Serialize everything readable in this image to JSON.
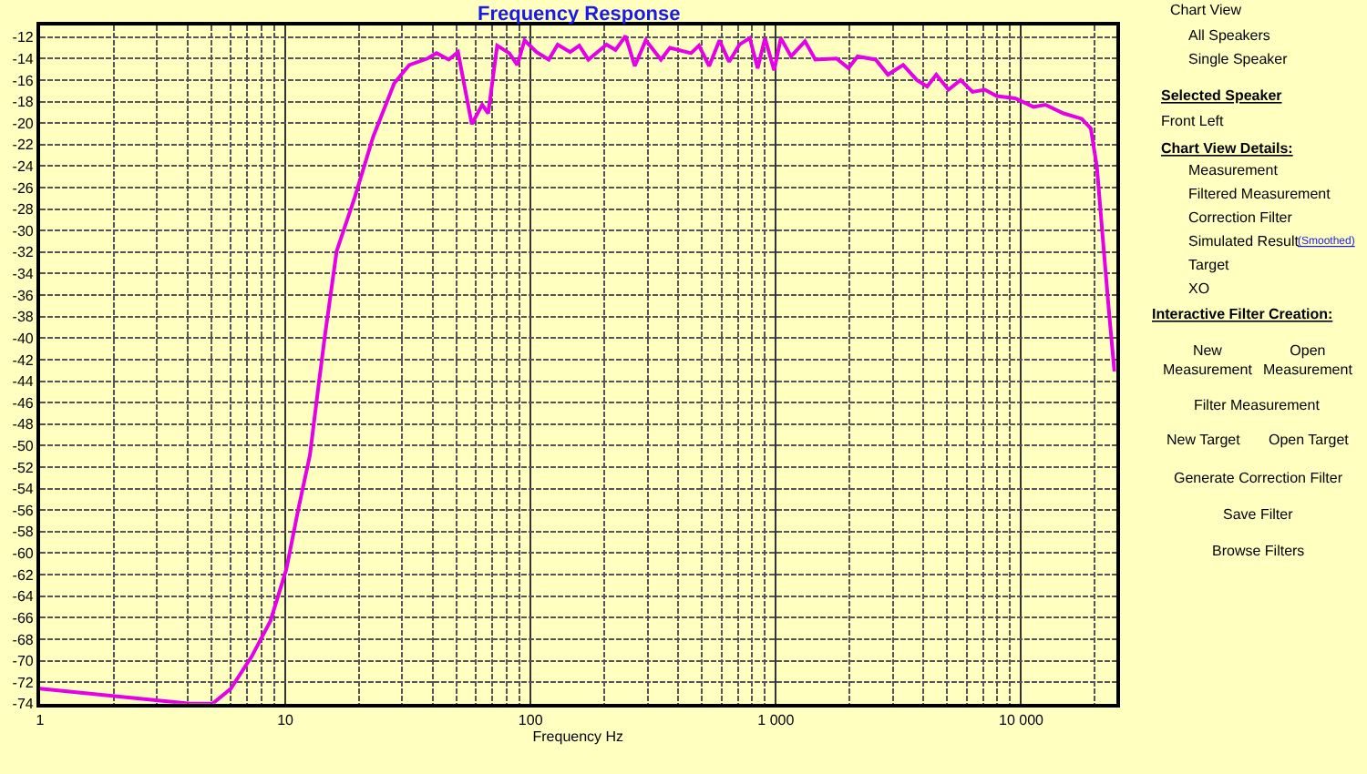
{
  "chart_data": [
    {
      "type": "line",
      "title": "Frequency Response",
      "xlabel": "Frequency Hz",
      "log": "x",
      "grid": true,
      "marker": "none",
      "line_style": "solid",
      "xlim": [
        1,
        24400
      ],
      "xticks": [
        1,
        10,
        100,
        {
          "value": 1000,
          "label": "1 000"
        },
        {
          "value": 10000,
          "label": "10 000"
        }
      ],
      "ylim": [
        -74,
        -10.9
      ],
      "yticks": [
        -12,
        -14,
        -16,
        -18,
        -20,
        -22,
        -24,
        -26,
        -28,
        -30,
        -32,
        -34,
        -36,
        -38,
        -40,
        -42,
        -44,
        -46,
        -48,
        -50,
        -52,
        -54,
        -56,
        -58,
        -60,
        -62,
        -64,
        -66,
        -68,
        -70,
        -72,
        -74
      ],
      "series": [
        {
          "color": "#e600e6",
          "x": [
            1,
            4.1,
            5.05,
            6.0,
            7.3,
            8.7,
            10.1,
            11.3,
            12.6,
            13.7,
            14.5,
            16.2,
            19.2,
            22.8,
            27.8,
            32,
            38,
            41.4,
            46.4,
            50.6,
            57.6,
            63.5,
            67.2,
            73.1,
            81.9,
            88.3,
            94.5,
            105.8,
            118.6,
            129,
            145,
            158,
            172,
            204,
            222,
            244,
            266,
            295,
            340,
            370,
            451,
            486,
            535,
            589,
            645,
            711,
            783,
            843,
            903,
            984,
            1048,
            1153,
            1315,
            1449,
            1767,
            1978,
            2154,
            2553,
            2865,
            3304,
            3759,
            4140,
            4509,
            5058,
            5664,
            6339,
            7112,
            7961,
            9459,
            11220,
            12560,
            14890,
            17660,
            19230,
            20370,
            21540,
            22800,
            24000
          ],
          "values": [
            -72.6,
            -74,
            -74,
            -72.6,
            -69.6,
            -66.3,
            -61.5,
            -55.9,
            -50.9,
            -44.2,
            -39.8,
            -31.9,
            -26.9,
            -21.3,
            -16.3,
            -14.6,
            -14.0,
            -13.5,
            -14.1,
            -13.4,
            -20.1,
            -18.3,
            -19.1,
            -12.8,
            -13.5,
            -14.6,
            -12.3,
            -13.4,
            -14.1,
            -12.7,
            -13.4,
            -12.8,
            -14.1,
            -12.7,
            -13.2,
            -11.9,
            -14.7,
            -12.3,
            -14.1,
            -13.0,
            -13.5,
            -12.8,
            -14.7,
            -12.3,
            -14.3,
            -12.7,
            -12.1,
            -14.9,
            -12.1,
            -15.1,
            -12.1,
            -13.8,
            -12.4,
            -14.1,
            -14.0,
            -14.9,
            -13.8,
            -14.1,
            -15.5,
            -14.6,
            -16.0,
            -16.6,
            -15.5,
            -16.9,
            -16.0,
            -17.1,
            -16.9,
            -17.5,
            -17.7,
            -18.5,
            -18.3,
            -19.1,
            -19.6,
            -20.5,
            -24.1,
            -30.8,
            -37.5,
            -43.1
          ]
        }
      ]
    },
    {
      "type": "other",
      "annotations": [
        "Chart View",
        "All Speakers",
        "Single Speaker",
        "Selected Speaker",
        "Front Left",
        "Chart View Details:",
        "Measurement",
        "Filtered Measurement",
        "Correction Filter",
        "Simulated Result",
        "(Smoothed)",
        "Target",
        "XO",
        "Interactive Filter Creation:",
        "New Measurement",
        "Open Measurement",
        "Filter Measurement",
        "New Target",
        "Open Target",
        "Generate Correction Filter",
        "Save Filter",
        "Browse Filters"
      ]
    }
  ]
}
